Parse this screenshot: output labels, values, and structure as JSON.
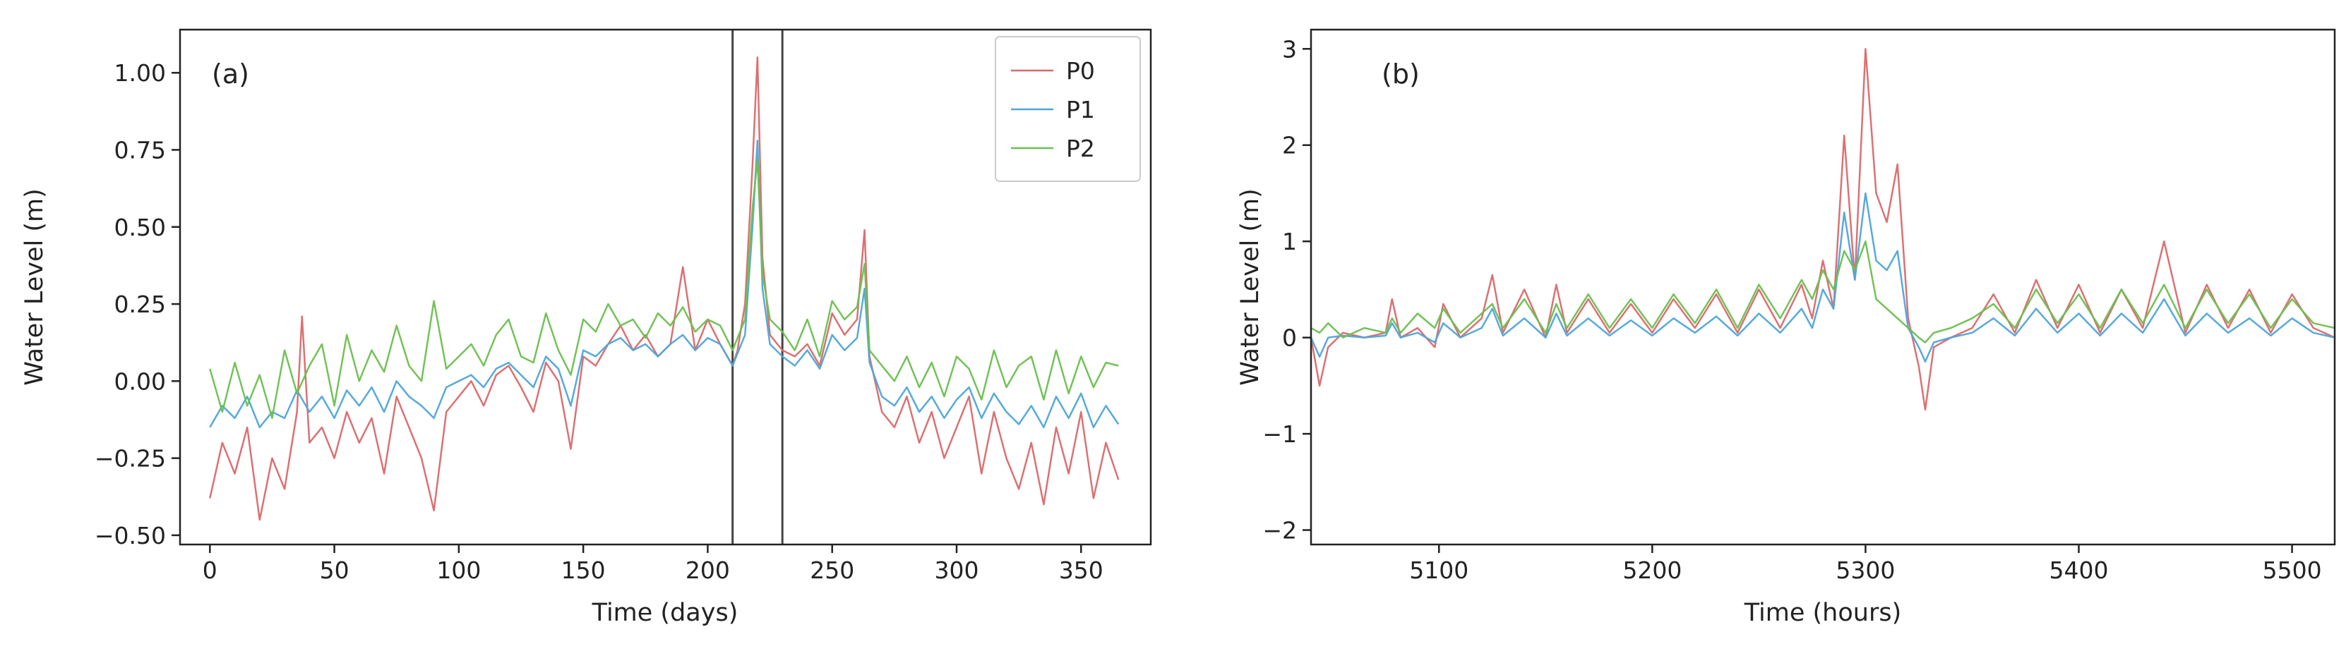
{
  "chart_data": [
    {
      "type": "line",
      "panel_label": "(a)",
      "xlabel": "Time (days)",
      "ylabel": "Water Level (m)",
      "xlim": [
        -12,
        378
      ],
      "ylim": [
        -0.53,
        1.14
      ],
      "xticks": [
        0,
        50,
        100,
        150,
        200,
        250,
        300,
        350
      ],
      "xtick_labels": [
        "0",
        "50",
        "100",
        "150",
        "200",
        "250",
        "300",
        "350"
      ],
      "yticks": [
        -0.5,
        -0.25,
        0.0,
        0.25,
        0.5,
        0.75,
        1.0
      ],
      "ytick_labels": [
        "−0.50",
        "−0.25",
        "0.00",
        "0.25",
        "0.50",
        "0.75",
        "1.00"
      ],
      "vlines": [
        210,
        230
      ],
      "legend": {
        "location": "top-right",
        "entries": [
          "P0",
          "P1",
          "P2"
        ]
      },
      "series": [
        {
          "name": "P0",
          "color": "#d9696b",
          "x": [
            0,
            5,
            10,
            15,
            20,
            25,
            30,
            35,
            37,
            40,
            45,
            50,
            55,
            60,
            65,
            70,
            75,
            80,
            85,
            90,
            95,
            100,
            105,
            110,
            115,
            120,
            125,
            130,
            135,
            140,
            145,
            150,
            155,
            160,
            165,
            170,
            175,
            180,
            185,
            190,
            195,
            200,
            205,
            210,
            212,
            215,
            218,
            220,
            222,
            225,
            230,
            235,
            240,
            245,
            250,
            255,
            260,
            263,
            265,
            270,
            275,
            280,
            285,
            290,
            295,
            300,
            305,
            310,
            315,
            320,
            325,
            330,
            335,
            340,
            345,
            350,
            355,
            360,
            365
          ],
          "values": [
            -0.38,
            -0.2,
            -0.3,
            -0.15,
            -0.45,
            -0.25,
            -0.35,
            -0.1,
            0.21,
            -0.2,
            -0.15,
            -0.25,
            -0.1,
            -0.2,
            -0.12,
            -0.3,
            -0.05,
            -0.15,
            -0.25,
            -0.42,
            -0.1,
            -0.05,
            0.0,
            -0.08,
            0.02,
            0.05,
            -0.02,
            -0.1,
            0.06,
            0.0,
            -0.22,
            0.08,
            0.05,
            0.12,
            0.18,
            0.1,
            0.15,
            0.08,
            0.12,
            0.37,
            0.1,
            0.2,
            0.12,
            0.05,
            0.1,
            0.25,
            0.7,
            1.05,
            0.4,
            0.15,
            0.1,
            0.08,
            0.12,
            0.05,
            0.22,
            0.15,
            0.2,
            0.49,
            0.08,
            -0.1,
            -0.15,
            -0.05,
            -0.2,
            -0.1,
            -0.25,
            -0.15,
            -0.05,
            -0.3,
            -0.1,
            -0.25,
            -0.35,
            -0.2,
            -0.4,
            -0.15,
            -0.3,
            -0.1,
            -0.38,
            -0.2,
            -0.32
          ]
        },
        {
          "name": "P1",
          "color": "#4ea5d9",
          "x": [
            0,
            5,
            10,
            15,
            20,
            25,
            30,
            35,
            40,
            45,
            50,
            55,
            60,
            65,
            70,
            75,
            80,
            85,
            90,
            95,
            100,
            105,
            110,
            115,
            120,
            125,
            130,
            135,
            140,
            145,
            150,
            155,
            160,
            165,
            170,
            175,
            180,
            185,
            190,
            195,
            200,
            205,
            210,
            215,
            218,
            220,
            222,
            225,
            230,
            235,
            240,
            245,
            250,
            255,
            260,
            263,
            265,
            270,
            275,
            280,
            285,
            290,
            295,
            300,
            305,
            310,
            315,
            320,
            325,
            330,
            335,
            340,
            345,
            350,
            355,
            360,
            365
          ],
          "values": [
            -0.15,
            -0.08,
            -0.12,
            -0.05,
            -0.15,
            -0.1,
            -0.12,
            -0.03,
            -0.1,
            -0.05,
            -0.12,
            -0.03,
            -0.08,
            -0.02,
            -0.1,
            0.0,
            -0.05,
            -0.08,
            -0.12,
            -0.02,
            0.0,
            0.02,
            -0.02,
            0.04,
            0.06,
            0.02,
            -0.02,
            0.08,
            0.04,
            -0.08,
            0.1,
            0.08,
            0.12,
            0.14,
            0.1,
            0.12,
            0.08,
            0.12,
            0.15,
            0.1,
            0.14,
            0.12,
            0.05,
            0.15,
            0.5,
            0.78,
            0.3,
            0.12,
            0.08,
            0.05,
            0.1,
            0.04,
            0.15,
            0.1,
            0.14,
            0.3,
            0.06,
            -0.05,
            -0.08,
            -0.02,
            -0.1,
            -0.05,
            -0.12,
            -0.06,
            -0.02,
            -0.12,
            -0.04,
            -0.1,
            -0.14,
            -0.08,
            -0.15,
            -0.05,
            -0.12,
            -0.04,
            -0.15,
            -0.08,
            -0.14
          ]
        },
        {
          "name": "P2",
          "color": "#6cbf4f",
          "x": [
            0,
            5,
            10,
            15,
            20,
            25,
            30,
            35,
            40,
            45,
            50,
            55,
            60,
            65,
            70,
            75,
            80,
            85,
            90,
            95,
            100,
            105,
            110,
            115,
            120,
            125,
            130,
            135,
            140,
            145,
            150,
            155,
            160,
            165,
            170,
            175,
            180,
            185,
            190,
            195,
            200,
            205,
            210,
            215,
            218,
            220,
            222,
            225,
            230,
            235,
            240,
            245,
            250,
            255,
            260,
            263,
            265,
            270,
            275,
            280,
            285,
            290,
            295,
            300,
            305,
            310,
            315,
            320,
            325,
            330,
            335,
            340,
            345,
            350,
            355,
            360,
            365
          ],
          "values": [
            0.04,
            -0.1,
            0.06,
            -0.08,
            0.02,
            -0.12,
            0.1,
            -0.04,
            0.05,
            0.12,
            -0.08,
            0.15,
            0.0,
            0.1,
            0.03,
            0.18,
            0.05,
            0.0,
            0.26,
            0.04,
            0.08,
            0.12,
            0.05,
            0.15,
            0.2,
            0.08,
            0.06,
            0.22,
            0.1,
            0.02,
            0.2,
            0.16,
            0.25,
            0.18,
            0.2,
            0.14,
            0.22,
            0.18,
            0.24,
            0.16,
            0.2,
            0.18,
            0.1,
            0.2,
            0.56,
            0.72,
            0.35,
            0.2,
            0.16,
            0.1,
            0.2,
            0.08,
            0.26,
            0.2,
            0.24,
            0.38,
            0.1,
            0.05,
            0.0,
            0.08,
            -0.02,
            0.06,
            -0.05,
            0.08,
            0.04,
            -0.06,
            0.1,
            -0.02,
            0.05,
            0.08,
            -0.06,
            0.1,
            -0.04,
            0.08,
            -0.02,
            0.06,
            0.05
          ]
        }
      ]
    },
    {
      "type": "line",
      "panel_label": "(b)",
      "xlabel": "Time (hours)",
      "ylabel": "Water Level (m)",
      "xlim": [
        5040,
        5520
      ],
      "ylim": [
        -2.15,
        3.2
      ],
      "xticks": [
        5100,
        5200,
        5300,
        5400,
        5500
      ],
      "xtick_labels": [
        "5100",
        "5200",
        "5300",
        "5400",
        "5500"
      ],
      "yticks": [
        -2,
        -1,
        0,
        1,
        2,
        3
      ],
      "ytick_labels": [
        "−2",
        "−1",
        "0",
        "1",
        "2",
        "3"
      ],
      "series": [
        {
          "name": "P0",
          "color": "#d9696b",
          "x": [
            5040,
            5044,
            5048,
            5055,
            5065,
            5075,
            5078,
            5082,
            5090,
            5098,
            5102,
            5110,
            5120,
            5125,
            5130,
            5140,
            5150,
            5155,
            5160,
            5170,
            5180,
            5190,
            5200,
            5210,
            5220,
            5230,
            5240,
            5250,
            5260,
            5270,
            5275,
            5280,
            5285,
            5290,
            5295,
            5300,
            5305,
            5310,
            5315,
            5320,
            5325,
            5328,
            5332,
            5340,
            5350,
            5360,
            5370,
            5380,
            5390,
            5400,
            5410,
            5420,
            5430,
            5440,
            5450,
            5460,
            5470,
            5480,
            5490,
            5500,
            5510,
            5520
          ],
          "values": [
            0.0,
            -0.5,
            -0.1,
            0.05,
            0.0,
            0.05,
            0.4,
            0.0,
            0.1,
            -0.1,
            0.35,
            0.0,
            0.2,
            0.65,
            0.05,
            0.5,
            0.0,
            0.55,
            0.05,
            0.4,
            0.05,
            0.35,
            0.05,
            0.4,
            0.1,
            0.45,
            0.05,
            0.5,
            0.1,
            0.55,
            0.2,
            0.8,
            0.3,
            2.1,
            0.6,
            3.0,
            1.5,
            1.2,
            1.8,
            0.2,
            -0.3,
            -0.75,
            -0.1,
            0.0,
            0.1,
            0.45,
            0.05,
            0.6,
            0.1,
            0.55,
            0.05,
            0.5,
            0.1,
            1.0,
            0.05,
            0.55,
            0.1,
            0.5,
            0.05,
            0.45,
            0.1,
            0.0
          ]
        },
        {
          "name": "P1",
          "color": "#4ea5d9",
          "x": [
            5040,
            5044,
            5048,
            5055,
            5065,
            5075,
            5078,
            5082,
            5090,
            5098,
            5102,
            5110,
            5120,
            5125,
            5130,
            5140,
            5150,
            5155,
            5160,
            5170,
            5180,
            5190,
            5200,
            5210,
            5220,
            5230,
            5240,
            5250,
            5260,
            5270,
            5275,
            5280,
            5285,
            5290,
            5295,
            5300,
            5305,
            5310,
            5315,
            5320,
            5325,
            5328,
            5332,
            5340,
            5350,
            5360,
            5370,
            5380,
            5390,
            5400,
            5410,
            5420,
            5430,
            5440,
            5450,
            5460,
            5470,
            5480,
            5490,
            5500,
            5510,
            5520
          ],
          "values": [
            0.0,
            -0.2,
            0.0,
            0.02,
            0.0,
            0.02,
            0.15,
            0.0,
            0.05,
            -0.05,
            0.15,
            0.0,
            0.1,
            0.3,
            0.02,
            0.2,
            0.0,
            0.25,
            0.02,
            0.2,
            0.02,
            0.18,
            0.02,
            0.2,
            0.05,
            0.22,
            0.02,
            0.25,
            0.05,
            0.3,
            0.1,
            0.5,
            0.3,
            1.3,
            0.6,
            1.5,
            0.8,
            0.7,
            0.9,
            0.1,
            -0.1,
            -0.25,
            -0.05,
            0.0,
            0.05,
            0.2,
            0.02,
            0.3,
            0.05,
            0.25,
            0.02,
            0.25,
            0.05,
            0.4,
            0.02,
            0.25,
            0.05,
            0.2,
            0.02,
            0.2,
            0.05,
            0.0
          ]
        },
        {
          "name": "P2",
          "color": "#6cbf4f",
          "x": [
            5040,
            5044,
            5048,
            5055,
            5065,
            5075,
            5078,
            5082,
            5090,
            5098,
            5102,
            5110,
            5120,
            5125,
            5130,
            5140,
            5150,
            5155,
            5160,
            5170,
            5180,
            5190,
            5200,
            5210,
            5220,
            5230,
            5240,
            5250,
            5260,
            5270,
            5275,
            5280,
            5285,
            5290,
            5295,
            5300,
            5305,
            5310,
            5315,
            5320,
            5325,
            5328,
            5332,
            5340,
            5350,
            5360,
            5370,
            5380,
            5390,
            5400,
            5410,
            5420,
            5430,
            5440,
            5450,
            5460,
            5470,
            5480,
            5490,
            5500,
            5510,
            5520
          ],
          "values": [
            0.1,
            0.05,
            0.15,
            0.0,
            0.1,
            0.05,
            0.2,
            0.05,
            0.25,
            0.1,
            0.3,
            0.05,
            0.25,
            0.35,
            0.1,
            0.4,
            0.05,
            0.35,
            0.1,
            0.45,
            0.1,
            0.4,
            0.1,
            0.45,
            0.15,
            0.5,
            0.1,
            0.55,
            0.2,
            0.6,
            0.4,
            0.7,
            0.5,
            0.9,
            0.7,
            1.0,
            0.4,
            0.3,
            0.2,
            0.1,
            0.0,
            -0.05,
            0.05,
            0.1,
            0.2,
            0.35,
            0.1,
            0.5,
            0.15,
            0.45,
            0.1,
            0.5,
            0.15,
            0.55,
            0.1,
            0.5,
            0.15,
            0.45,
            0.1,
            0.4,
            0.15,
            0.1
          ]
        }
      ]
    }
  ]
}
